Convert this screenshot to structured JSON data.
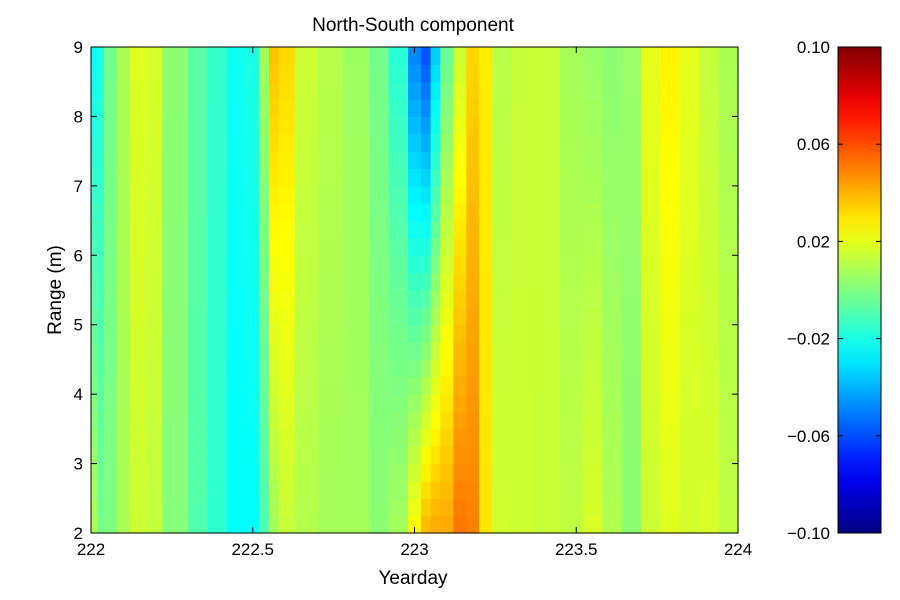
{
  "chart_data": {
    "type": "heatmap",
    "title": "North-South component",
    "xlabel": "Yearday",
    "ylabel": "Range (m)",
    "xlim": [
      222,
      224
    ],
    "ylim": [
      2,
      9
    ],
    "x_ticks": [
      222,
      222.5,
      223,
      223.5,
      224
    ],
    "x_tick_labels": [
      "222",
      "222.5",
      "223",
      "223.5",
      "224"
    ],
    "y_ticks": [
      2,
      3,
      4,
      5,
      6,
      7,
      8,
      9
    ],
    "y_tick_labels": [
      "2",
      "3",
      "4",
      "5",
      "6",
      "7",
      "8",
      "9"
    ],
    "colormap": "jet",
    "clim": [
      -0.1,
      0.1
    ],
    "colorbar_ticks": [
      0.1,
      0.06,
      0.02,
      -0.02,
      -0.06,
      -0.1
    ],
    "colorbar_tick_labels": [
      "0.10",
      "0.06",
      "0.02",
      "−0.02",
      "−0.06",
      "−0.10"
    ],
    "colors": {
      "jet_stops": [
        "#00008f",
        "#0000ff",
        "#00ffff",
        "#ffff00",
        "#ff0000",
        "#800000"
      ],
      "axis": "#000000",
      "background": "#ffffff"
    },
    "grid": false,
    "field_columns": {
      "yearday": [
        222.0,
        222.02,
        222.04,
        222.08,
        222.12,
        222.17,
        222.22,
        222.3,
        222.36,
        222.42,
        222.47,
        222.52,
        222.55,
        222.58,
        222.63,
        222.7,
        222.78,
        222.86,
        222.92,
        222.98,
        223.02,
        223.05,
        223.08,
        223.12,
        223.16,
        223.2,
        223.24,
        223.3,
        223.38,
        223.45,
        223.52,
        223.58,
        223.64,
        223.7,
        223.76,
        223.82,
        223.88,
        223.94,
        224.0
      ],
      "value_low": [
        0.02,
        0.0,
        -0.005,
        0.005,
        0.012,
        0.018,
        0.008,
        -0.005,
        -0.012,
        -0.02,
        -0.03,
        -0.02,
        0.0,
        0.012,
        0.015,
        0.005,
        0.01,
        0.005,
        0.0,
        0.015,
        0.035,
        0.045,
        0.04,
        0.045,
        0.06,
        0.04,
        0.02,
        0.012,
        0.018,
        0.01,
        0.015,
        0.02,
        0.0,
        0.005,
        0.025,
        0.012,
        0.02,
        0.015,
        0.01
      ],
      "value_high": [
        -0.02,
        -0.03,
        -0.01,
        0.005,
        0.012,
        0.025,
        0.01,
        -0.005,
        -0.01,
        -0.02,
        -0.025,
        -0.015,
        0.03,
        0.045,
        0.02,
        0.01,
        0.012,
        0.0,
        -0.005,
        -0.03,
        -0.07,
        -0.05,
        -0.02,
        0.01,
        0.02,
        0.045,
        0.012,
        0.01,
        0.018,
        0.01,
        0.005,
        0.005,
        0.0,
        0.01,
        0.03,
        0.025,
        0.015,
        0.012,
        0.005
      ]
    }
  }
}
